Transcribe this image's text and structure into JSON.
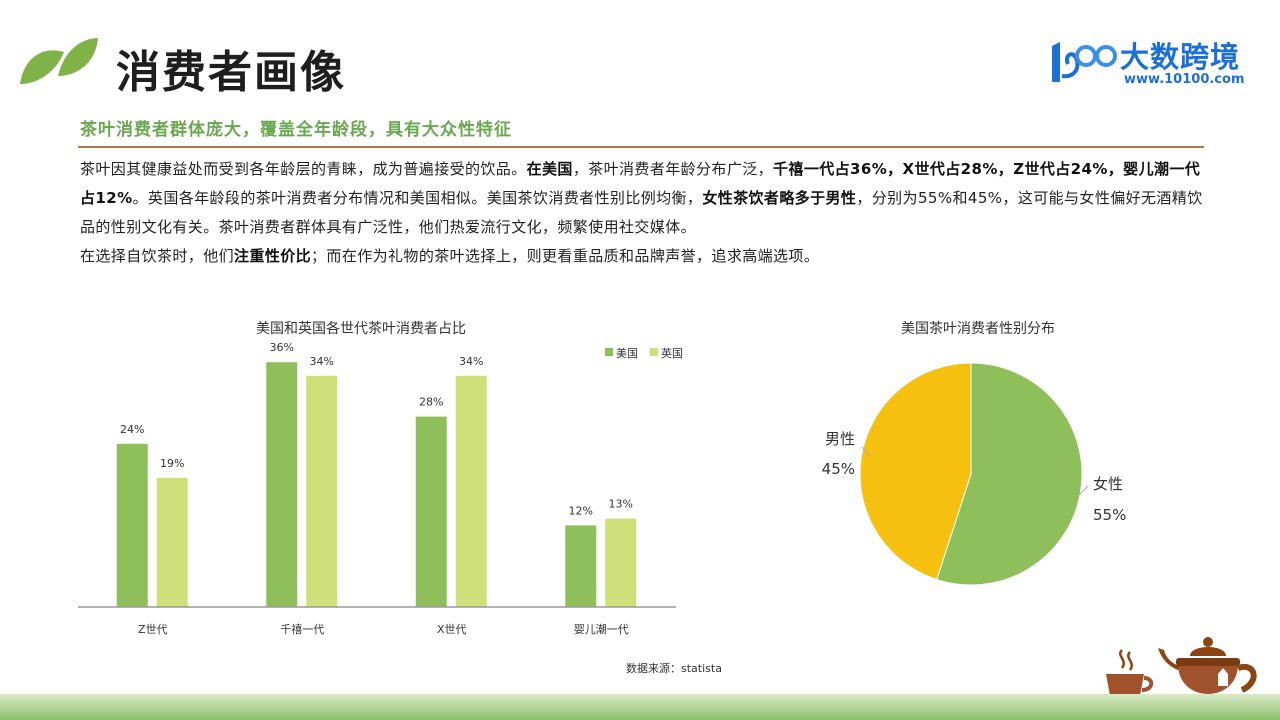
{
  "header": {
    "title": "消费者画像",
    "brand_name": "大数跨境",
    "brand_url": "www.10100.com"
  },
  "subtitle": "茶叶消费者群体庞大，覆盖全年龄段，具有大众性特征",
  "paragraph": [
    [
      {
        "t": "茶叶因其健康益处而受到各年龄层的青睐，成为普遍接受的饮品。",
        "b": false
      },
      {
        "t": "在美国",
        "b": true
      },
      {
        "t": "，茶叶消费者年龄分布广泛，",
        "b": false
      },
      {
        "t": "千禧一代占36%，X世代占28%，Z世代占24%，婴儿潮一代占12%",
        "b": true
      },
      {
        "t": "。英国各年龄段的茶叶消费者分布情况和美国相似。美国茶饮消费者性别比例均衡，",
        "b": false
      },
      {
        "t": "女性茶饮者略多于男性",
        "b": true
      },
      {
        "t": "，分别为55%和45%，这可能与女性偏好无酒精饮品的性别文化有关。茶叶消费者群体具有广泛性，他们热爱流行文化，频繁使用社交媒体。",
        "b": false
      }
    ],
    [
      {
        "t": "在选择自饮茶时，他们",
        "b": false
      },
      {
        "t": "注重性价比",
        "b": true
      },
      {
        "t": "；而在作为礼物的茶叶选择上，则更看重品质和品牌声誉，追求高端选项。",
        "b": false
      }
    ]
  ],
  "chart_data": [
    {
      "type": "bar",
      "title": "美国和英国各世代茶叶消费者占比",
      "categories": [
        "Z世代",
        "千禧一代",
        "X世代",
        "婴儿潮一代"
      ],
      "series": [
        {
          "name": "美国",
          "values": [
            24,
            36,
            28,
            12
          ],
          "labels": [
            "24%",
            "36%",
            "28%",
            "12%"
          ],
          "color": "#8fbf5a"
        },
        {
          "name": "英国",
          "values": [
            19,
            34,
            34,
            13
          ],
          "labels": [
            "19%",
            "34%",
            "34%",
            "13%"
          ],
          "color": "#cfe07a"
        }
      ],
      "ylim": [
        0,
        40
      ],
      "legend": "top-right",
      "grid": false
    },
    {
      "type": "pie",
      "title": "美国茶叶消费者性别分布",
      "slices": [
        {
          "name": "女性",
          "value": 55,
          "label": "55%",
          "color": "#8fbf5a"
        },
        {
          "name": "男性",
          "value": 45,
          "label": "45%",
          "color": "#f5c010"
        }
      ]
    }
  ],
  "source": "数据来源：statista"
}
